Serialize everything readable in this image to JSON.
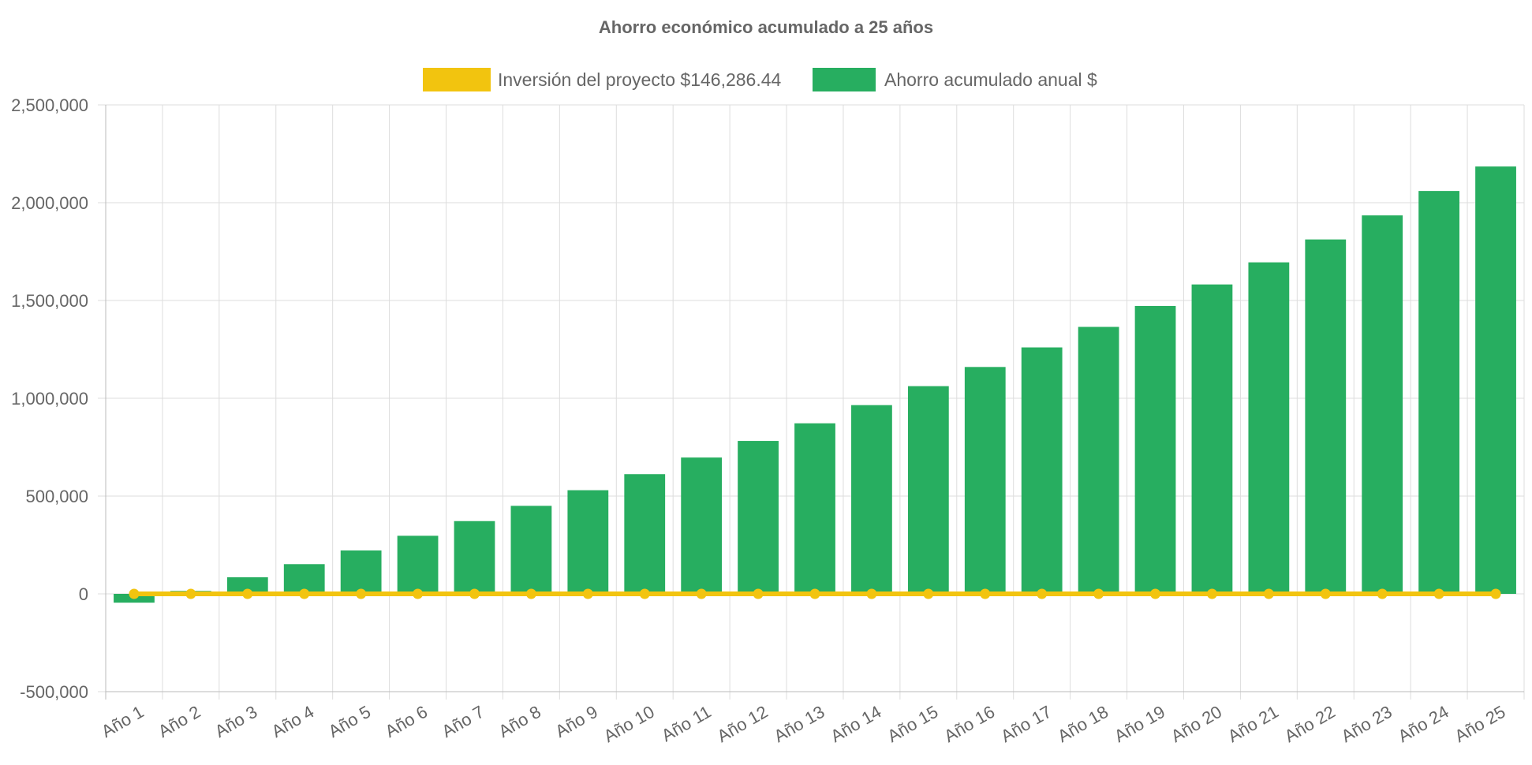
{
  "chart_data": {
    "type": "bar",
    "title": "Ahorro económico acumulado a 25 años",
    "categories": [
      "Año 1",
      "Año 2",
      "Año 3",
      "Año 4",
      "Año 5",
      "Año 6",
      "Año 7",
      "Año 8",
      "Año 9",
      "Año 10",
      "Año 11",
      "Año 12",
      "Año 13",
      "Año 14",
      "Año 15",
      "Año 16",
      "Año 17",
      "Año 18",
      "Año 19",
      "Año 20",
      "Año 21",
      "Año 22",
      "Año 23",
      "Año 24",
      "Año 25"
    ],
    "series": [
      {
        "name": "Inversión del proyecto $146,286.44",
        "type": "line",
        "color": "#f2c40f",
        "values": [
          0,
          0,
          0,
          0,
          0,
          0,
          0,
          0,
          0,
          0,
          0,
          0,
          0,
          0,
          0,
          0,
          0,
          0,
          0,
          0,
          0,
          0,
          0,
          0,
          0
        ]
      },
      {
        "name": "Ahorro acumulado anual $",
        "type": "bar",
        "color": "#27ae60",
        "values": [
          -45000,
          15000,
          85000,
          152000,
          222000,
          297000,
          372000,
          450000,
          530000,
          612000,
          697000,
          782000,
          872000,
          965000,
          1062000,
          1160000,
          1260000,
          1365000,
          1472000,
          1582000,
          1695000,
          1812000,
          1935000,
          2060000,
          2185000
        ]
      }
    ],
    "ylim": [
      -500000,
      2500000
    ],
    "yticks": [
      2500000,
      2000000,
      1500000,
      1000000,
      500000,
      0,
      -500000
    ],
    "ytick_labels": [
      "2,500,000",
      "2,000,000",
      "1,500,000",
      "1,000,000",
      "500,000",
      "0",
      "-500,000"
    ],
    "grid": true,
    "legend_position": "top"
  }
}
